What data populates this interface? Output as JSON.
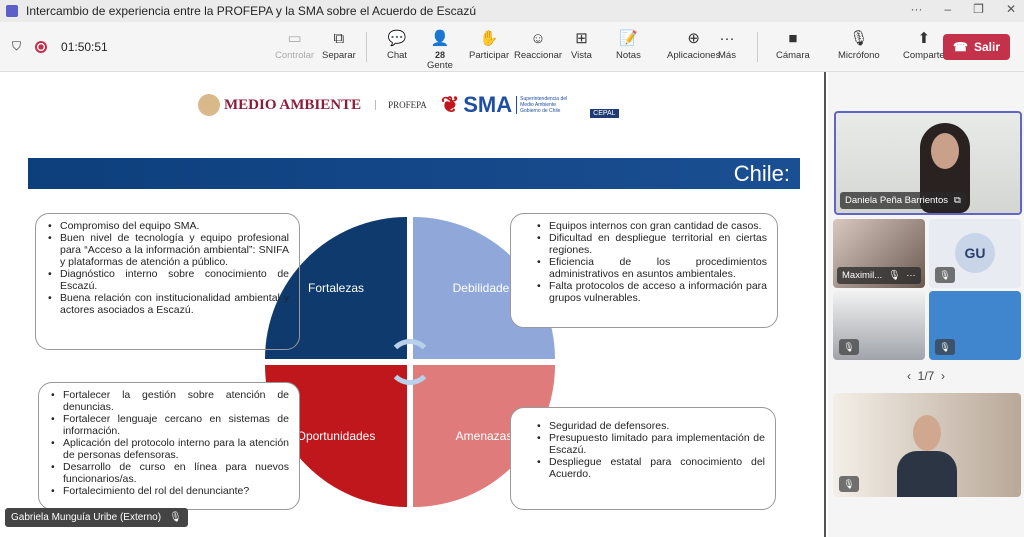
{
  "window": {
    "title": "Intercambio de experiencia entre la PROFEPA y la SMA sobre el Acuerdo de Escazú",
    "more": "···",
    "minimize": "–",
    "restore": "❐",
    "close": "✕"
  },
  "toolbar": {
    "timer": "01:50:51",
    "people_count": "28",
    "buttons": [
      {
        "label": "Controlar",
        "icon": "▭"
      },
      {
        "label": "Separar",
        "icon": "⧉"
      },
      {
        "label": "Chat",
        "icon": "💬"
      },
      {
        "label": "Gente",
        "icon": "👤"
      },
      {
        "label": "Participar",
        "icon": "✋"
      },
      {
        "label": "Reaccionar",
        "icon": "☺"
      },
      {
        "label": "Vista",
        "icon": "⊞"
      },
      {
        "label": "Notas",
        "icon": "📝"
      },
      {
        "label": "Aplicaciones",
        "icon": "⊕"
      },
      {
        "label": "Más",
        "icon": "···"
      },
      {
        "label": "Cámara",
        "icon": "■"
      },
      {
        "label": "Micrófono",
        "icon": "🎙"
      },
      {
        "label": "Comparte",
        "icon": "⬆"
      }
    ],
    "leave": "Salir"
  },
  "slide": {
    "logos": {
      "medio_ambiente": "MEDIO AMBIENTE",
      "profepa": "PROFEPA",
      "sma": "SMA",
      "sma_sub": "Superintendencia del Medio Ambiente Gobierno de Chile",
      "cepal": "CEPAL"
    },
    "header": "Chile:",
    "quadrants": {
      "tl": "Fortalezas",
      "tr": "Debilidades",
      "bl": "Oportunidades",
      "br": "Amenazas"
    },
    "colors": {
      "tl": "#0e3a6e",
      "tr": "#8fa8d9",
      "bl": "#c0171d",
      "br": "#e07b7b"
    },
    "fortalezas": [
      "Compromiso del equipo SMA.",
      "Buen nivel de tecnología y equipo profesional para “Acceso a la información ambiental”: SNIFA y plataformas de atención a público.",
      "Diagnóstico interno sobre conocimiento de Escazú.",
      "Buena relación con institucionalidad ambiental y actores asociados a Escazú."
    ],
    "debilidades": [
      "Equipos internos con gran cantidad de casos.",
      "Dificultad en despliegue territorial en ciertas regiones.",
      "Eficiencia de los procedimientos administrativos en asuntos ambientales.",
      "Falta protocolos de acceso a información para grupos vulnerables."
    ],
    "oportunidades": [
      "Fortalecer la gestión sobre atención de denuncias.",
      "Fortalecer lenguaje cercano en sistemas de información.",
      "Aplicación del protocolo interno para la atención de personas defensoras.",
      "Desarrollo de curso en línea para nuevos funcionarios/as.",
      "Fortalecimiento del rol del denunciante?"
    ],
    "amenazas": [
      "Seguridad de defensores.",
      "Presupuesto limitado para implementación de Escazú.",
      "Despliegue estatal para conocimiento del Acuerdo."
    ]
  },
  "presenter": "Gabriela Munguía Uribe (Externo)",
  "participants": {
    "main": "Daniela Peña Barrientos",
    "p2": "Maximil...",
    "p3_initials": "GU",
    "pager": "1/7",
    "prev": "‹",
    "next": "›"
  }
}
